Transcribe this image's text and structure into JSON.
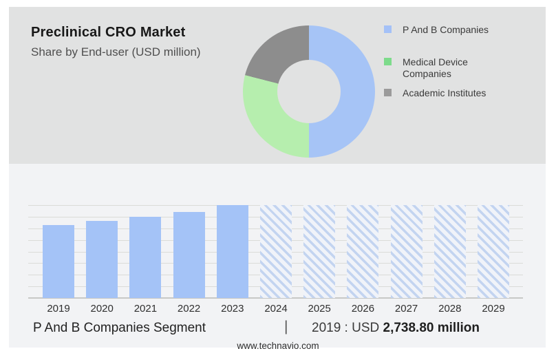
{
  "header": {
    "title": "Preclinical CRO Market",
    "subtitle": "Share by End-user (USD million)"
  },
  "footer": {
    "segment_label": "P And B Companies Segment",
    "separator": "|",
    "value_prefix": "2019 : USD",
    "value_bold": "2,738.80 million",
    "website": "www.technavio.com"
  },
  "colors": {
    "panel_top": "#e1e2e2",
    "panel_bottom": "#f2f3f5",
    "bar_blue": "#a4c3f7",
    "hatch_line": "#c3d4f0",
    "hatch_gap": "#f0f3f9",
    "gridline": "#dadbd8",
    "axis_line": "#c7c8c6",
    "pie_blue": "#a6c4f6",
    "pie_green": "#b6eeae",
    "pie_gray": "#8d8d8d",
    "legend_green": "#7ddb8b",
    "legend_gray": "#9b9b9b"
  },
  "chart_data": [
    {
      "type": "pie",
      "donut": true,
      "title": "Preclinical CRO Market share by End-user (USD million)",
      "legend_position": "right",
      "segments": [
        {
          "label": "P And B Companies",
          "pct": 50,
          "color": "#a6c4f6",
          "legend_color": "#a4c1f7"
        },
        {
          "label": "Medical Device Companies",
          "pct": 29,
          "color": "#b6eeae",
          "legend_color": "#7ddb8b"
        },
        {
          "label": "Academic Institutes",
          "pct": 21,
          "color": "#8d8d8d",
          "legend_color": "#9b9b9b"
        }
      ]
    },
    {
      "type": "bar",
      "categories": [
        "2019",
        "2020",
        "2021",
        "2022",
        "2023",
        "2024",
        "2025",
        "2026",
        "2027",
        "2028",
        "2029"
      ],
      "values": [
        2738.8,
        2895,
        3050,
        3230,
        3490,
        3490,
        3490,
        3490,
        3490,
        3490,
        3490
      ],
      "forecast_hatched": [
        false,
        false,
        false,
        false,
        false,
        true,
        true,
        true,
        true,
        true,
        true
      ],
      "ylim": [
        0,
        3490
      ],
      "gridline_count": 9,
      "grid": "horizontal",
      "xlabel": "",
      "ylabel": "USD million",
      "labeled_point": {
        "category": "2019",
        "value": 2738.8
      }
    }
  ]
}
